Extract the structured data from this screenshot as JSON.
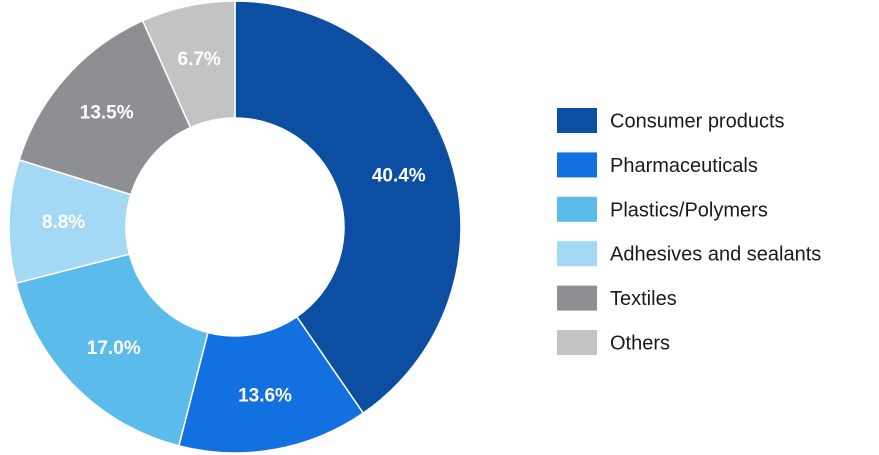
{
  "chart_data": {
    "type": "pie",
    "style": "donut",
    "title": "",
    "legend_position": "right",
    "categories": [
      "Consumer products",
      "Pharmaceuticals",
      "Plastics/Polymers",
      "Adhesives and sealants",
      "Textiles",
      "Others"
    ],
    "values": [
      40.4,
      13.6,
      17.0,
      8.8,
      13.5,
      6.7
    ],
    "value_labels": [
      "40.4%",
      "13.6%",
      "17.0%",
      "8.8%",
      "13.5%",
      "6.7%"
    ],
    "colors": [
      "#0b4ea2",
      "#1270e0",
      "#5bbbea",
      "#a4d9f5",
      "#8e8f93",
      "#c3c3c3"
    ]
  }
}
